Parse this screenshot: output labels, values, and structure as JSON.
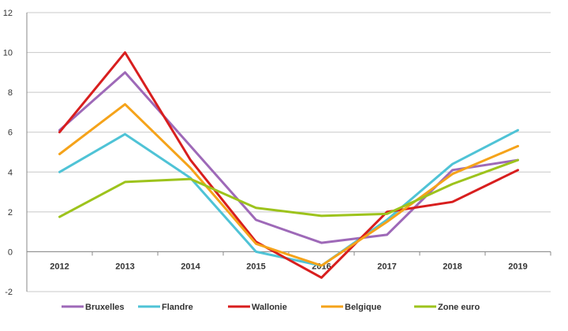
{
  "chart_data": {
    "type": "line",
    "categories": [
      "2012",
      "2013",
      "2014",
      "2015",
      "2016",
      "2017",
      "2018",
      "2019"
    ],
    "ylim": [
      -2,
      12
    ],
    "yticks": [
      -2,
      0,
      2,
      4,
      6,
      8,
      10,
      12
    ],
    "grid": true,
    "legend_position": "bottom",
    "series": [
      {
        "name": "Bruxelles",
        "color": "#9e69b8",
        "values": [
          6.1,
          9.0,
          5.3,
          1.6,
          0.45,
          0.85,
          4.1,
          4.6
        ]
      },
      {
        "name": "Flandre",
        "color": "#4fc3d6",
        "values": [
          4.0,
          5.9,
          3.7,
          0.0,
          -0.7,
          1.6,
          4.4,
          6.1
        ]
      },
      {
        "name": "Wallonie",
        "color": "#d81e1e",
        "values": [
          6.0,
          10.0,
          4.6,
          0.5,
          -1.3,
          2.0,
          2.5,
          4.1
        ]
      },
      {
        "name": "Belgique",
        "color": "#f5a31a",
        "values": [
          4.9,
          7.4,
          4.2,
          0.4,
          -0.7,
          1.5,
          3.9,
          5.3
        ]
      },
      {
        "name": "Zone euro",
        "color": "#9dc31c",
        "values": [
          1.75,
          3.5,
          3.65,
          2.2,
          1.8,
          1.9,
          3.4,
          4.6
        ]
      }
    ]
  }
}
